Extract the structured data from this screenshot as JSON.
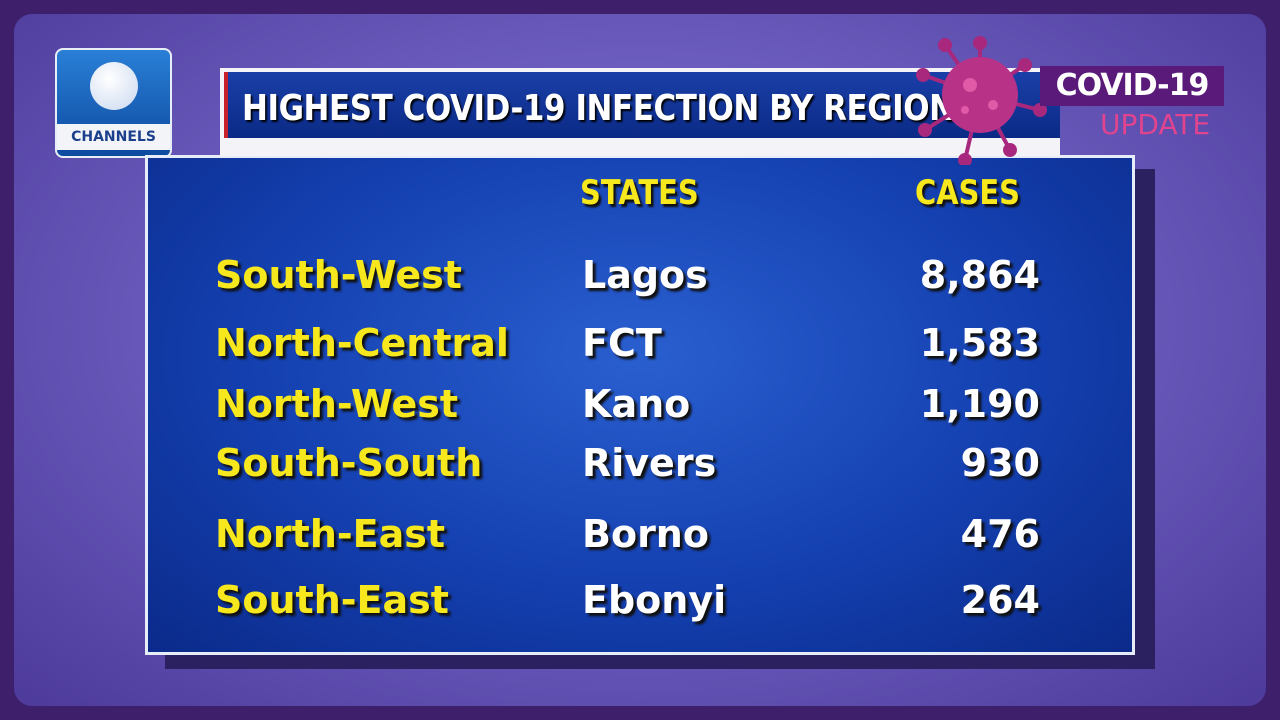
{
  "logo": "CHANNELS",
  "header": {
    "title": "HIGHEST COVID-19 INFECTION BY REGION"
  },
  "badge": {
    "title": "COVID-19",
    "subtitle": "UPDATE"
  },
  "table": {
    "columns": [
      "STATES",
      "CASES"
    ],
    "rows": [
      [
        "South-West",
        "Lagos",
        "8,864"
      ],
      [
        "North-Central",
        "FCT",
        "1,583"
      ],
      [
        "North-West",
        "Kano",
        "1,190"
      ],
      [
        "South-South",
        "Rivers",
        "930"
      ],
      [
        "North-East",
        "Borno",
        "476"
      ],
      [
        "South-East",
        "Ebonyi",
        "264"
      ]
    ]
  }
}
